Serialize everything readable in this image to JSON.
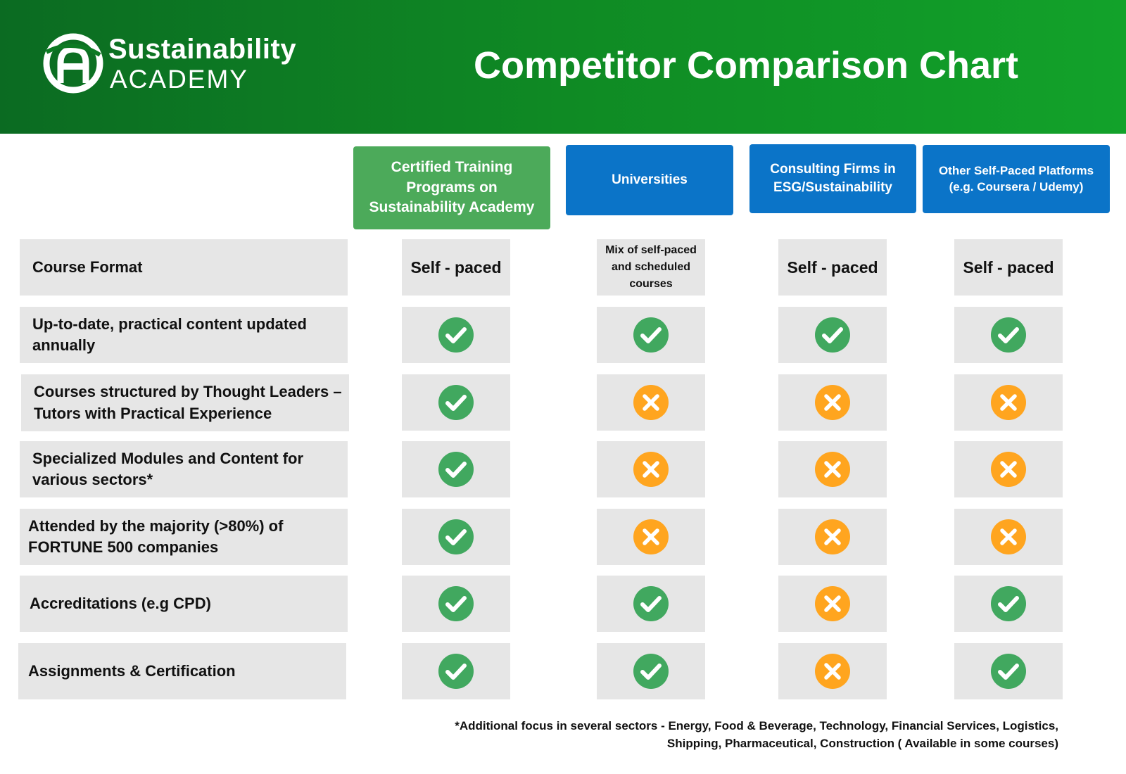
{
  "header": {
    "logo_title": "Sustainability",
    "logo_subtitle": "ACADEMY",
    "title": "Competitor Comparison Chart"
  },
  "columns": [
    "Certified Training Programs on Sustainability Academy",
    "Universities",
    "Consulting Firms in ESG/Sustainability",
    "Other Self-Paced Platforms (e.g. Coursera / Udemy)"
  ],
  "rows": [
    {
      "label": "Course Format",
      "values": [
        "Self - paced",
        "Mix of self-paced and scheduled courses",
        "Self - paced",
        "Self - paced"
      ]
    },
    {
      "label": "Up-to-date, practical content updated annually",
      "values": [
        "check",
        "check",
        "check",
        "check"
      ]
    },
    {
      "label": "Courses structured by Thought Leaders – Tutors with Practical Experience",
      "values": [
        "check",
        "cross",
        "cross",
        "cross"
      ]
    },
    {
      "label": "Specialized Modules and Content for various sectors*",
      "values": [
        "check",
        "cross",
        "cross",
        "cross"
      ]
    },
    {
      "label": "Attended by the majority (>80%) of FORTUNE 500 companies",
      "values": [
        "check",
        "cross",
        "cross",
        "cross"
      ]
    },
    {
      "label": "Accreditations (e.g CPD)",
      "values": [
        "check",
        "check",
        "cross",
        "check"
      ]
    },
    {
      "label": "Assignments & Certification",
      "values": [
        "check",
        "check",
        "cross",
        "check"
      ]
    }
  ],
  "footnote": "*Additional focus in several sectors - Energy, Food & Beverage, Technology, Financial Services, Logistics, Shipping, Pharmaceutical, Construction ( Available in some courses)",
  "icons": {
    "check": "check-circle-icon",
    "cross": "cross-circle-icon"
  },
  "colors": {
    "header_start": "#0b6b22",
    "header_end": "#12a22a",
    "primary_column": "#4caa5a",
    "competitor_column": "#0b74c8",
    "check": "#41a85f",
    "cross": "#ffa51f",
    "cell_bg": "#e6e6e6"
  }
}
